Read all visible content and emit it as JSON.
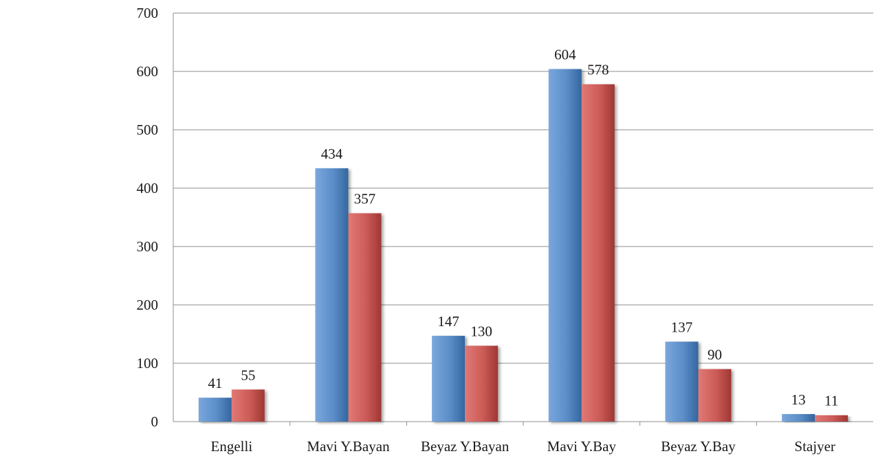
{
  "chart_data": {
    "type": "bar",
    "categories": [
      "Engelli",
      "Mavi Y.Bayan",
      "Beyaz Y.Bayan",
      "Mavi Y.Bay",
      "Beyaz Y.Bay",
      "Stajyer"
    ],
    "series": [
      {
        "values": [
          41,
          434,
          147,
          604,
          137,
          13
        ],
        "color": "#5b8dc8"
      },
      {
        "values": [
          55,
          357,
          130,
          578,
          90,
          11
        ],
        "color": "#cc5b57"
      }
    ],
    "yticks": [
      0,
      100,
      200,
      300,
      400,
      500,
      600,
      700
    ],
    "ylim": [
      0,
      700
    ],
    "grid": true,
    "legend": "none",
    "title": "",
    "xlabel": "",
    "ylabel": ""
  }
}
